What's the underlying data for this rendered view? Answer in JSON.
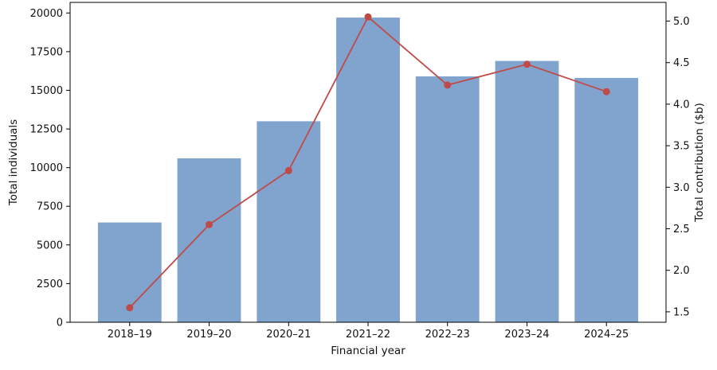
{
  "chart_data": {
    "type": "bar",
    "subtype": "dual-axis-bar-line-combo",
    "title": "",
    "categories": [
      "2018–19",
      "2019–20",
      "2020–21",
      "2021–22",
      "2022–23",
      "2023–24",
      "2024–25"
    ],
    "series": [
      {
        "name": "Total individuals",
        "kind": "bar",
        "axis": "left",
        "values": [
          6450,
          10600,
          13000,
          19700,
          15900,
          16900,
          15800
        ],
        "color": "#81a4cf"
      },
      {
        "name": "Total contribution ($b)",
        "kind": "line",
        "axis": "right",
        "values": [
          1.55,
          2.55,
          3.2,
          5.05,
          4.23,
          4.48,
          4.15
        ],
        "color": "#bf4a47",
        "marker": "circle"
      }
    ],
    "xlabel": "Financial year",
    "ylabel_left": "Total individuals",
    "ylabel_right": "Total contribution ($b)",
    "yticks_left": [
      0,
      2500,
      5000,
      7500,
      10000,
      12500,
      15000,
      17500,
      20000
    ],
    "yticks_right": [
      1.5,
      2.0,
      2.5,
      3.0,
      3.5,
      4.0,
      4.5,
      5.0
    ],
    "ylim_left": [
      0,
      20685
    ],
    "ylim_right": [
      1.375,
      5.225
    ],
    "xlim": [
      -0.75,
      6.75
    ],
    "bar_width": 0.8,
    "grid": false,
    "legend_position": "none",
    "background_color": "#ffffff",
    "spine_color": "#000000"
  }
}
